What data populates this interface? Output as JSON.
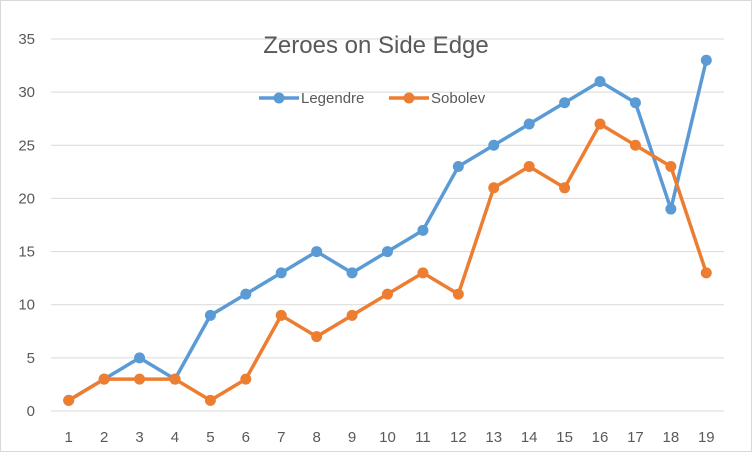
{
  "chart_data": {
    "type": "line",
    "title": "Zeroes on Side Edge",
    "xlabel": "",
    "ylabel": "",
    "categories": [
      "1",
      "2",
      "3",
      "4",
      "5",
      "6",
      "7",
      "8",
      "9",
      "10",
      "11",
      "12",
      "13",
      "14",
      "15",
      "16",
      "17",
      "18",
      "19"
    ],
    "ylim": [
      0,
      35
    ],
    "yticks": [
      0,
      5,
      10,
      15,
      20,
      25,
      30,
      35
    ],
    "grid": true,
    "legend_position": "top",
    "series": [
      {
        "name": "Legendre",
        "color": "#5b9bd5",
        "values": [
          1,
          3,
          5,
          3,
          9,
          11,
          13,
          15,
          13,
          15,
          17,
          23,
          25,
          27,
          29,
          31,
          29,
          19,
          33
        ]
      },
      {
        "name": "Sobolev",
        "color": "#ed7d31",
        "values": [
          1,
          3,
          3,
          3,
          1,
          3,
          9,
          7,
          9,
          11,
          13,
          11,
          21,
          23,
          21,
          27,
          25,
          23,
          13
        ]
      }
    ]
  }
}
